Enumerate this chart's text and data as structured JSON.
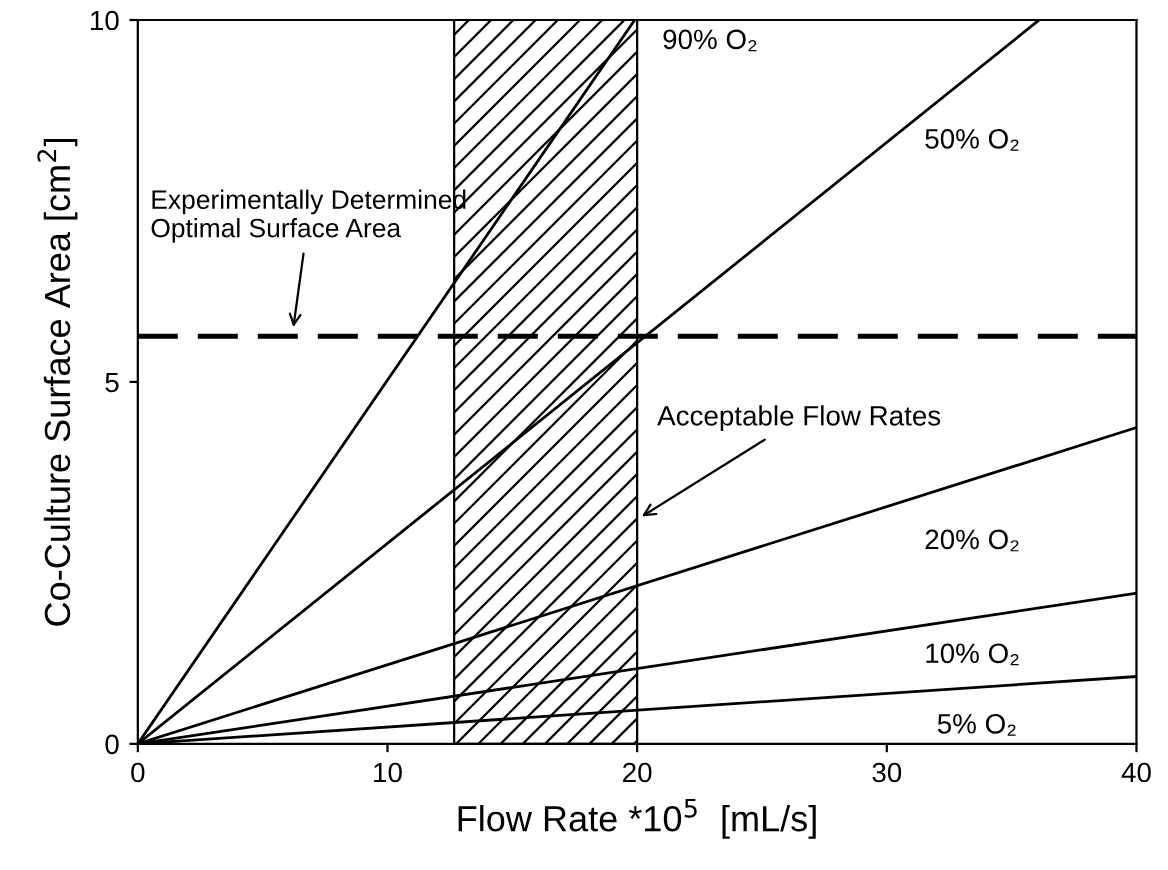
{
  "chart_data": {
    "type": "line",
    "xlabel": "Flow Rate *10$^{5}$  [mL/s]",
    "ylabel": "Co-Culture Surface Area [cm$^{2}$]",
    "xlim": [
      0,
      40
    ],
    "ylim": [
      0,
      10
    ],
    "xticks": [
      0,
      10,
      20,
      30,
      40
    ],
    "yticks": [
      0,
      5,
      10
    ],
    "grid": false,
    "legend": false,
    "marker": "none",
    "line_style": "solid",
    "series": [
      {
        "name": "90% O₂",
        "color": "#000000",
        "x": [
          0,
          19.9
        ],
        "values": [
          0,
          10
        ]
      },
      {
        "name": "50% O₂",
        "color": "#000000",
        "x": [
          0,
          36.1
        ],
        "values": [
          0,
          10
        ]
      },
      {
        "name": "20% O₂",
        "color": "#000000",
        "x": [
          0,
          40
        ],
        "values": [
          0,
          4.37
        ]
      },
      {
        "name": "10% O₂",
        "color": "#000000",
        "x": [
          0,
          40
        ],
        "values": [
          0,
          2.08
        ]
      },
      {
        "name": "5% O₂",
        "color": "#000000",
        "x": [
          0,
          40
        ],
        "values": [
          0,
          0.93
        ]
      }
    ],
    "ref_lines": [
      {
        "axis": "y",
        "value": 5.63,
        "label": "Experimentally Determined\nOptimal Surface Area",
        "color": "#000000",
        "line_style": "dashed"
      }
    ],
    "bands": [
      {
        "axis": "x",
        "from": 12.67,
        "to": 20,
        "label": "Acceptable Flow Rates"
      }
    ]
  }
}
